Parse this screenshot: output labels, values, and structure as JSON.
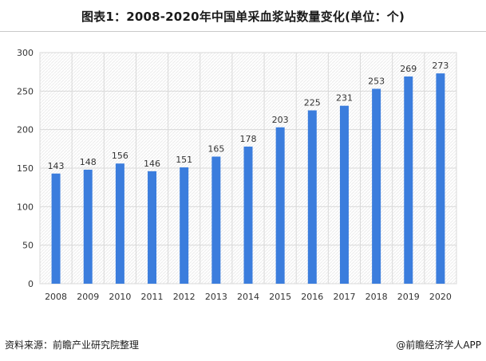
{
  "title": "图表1：2008-2020年中国单采血浆站数量变化(单位：个)",
  "footer": {
    "source": "资料来源：前瞻产业研究院整理",
    "brand": "@前瞻经济学人APP"
  },
  "watermark": "前瞻产业研究院",
  "chart_data": {
    "type": "bar",
    "title": "2008-2020年中国单采血浆站数量变化(单位：个)",
    "categories": [
      "2008",
      "2009",
      "2010",
      "2011",
      "2012",
      "2013",
      "2014",
      "2015",
      "2016",
      "2017",
      "2018",
      "2019",
      "2020"
    ],
    "series": [
      {
        "values": [
          143,
          148,
          156,
          146,
          151,
          165,
          178,
          203,
          225,
          231,
          253,
          269,
          273
        ]
      }
    ],
    "ylim": [
      0,
      300
    ],
    "yticks": [
      0,
      50,
      100,
      150,
      200,
      250,
      300
    ],
    "xlabel": "",
    "ylabel": "",
    "grid": true,
    "bar_color": "#3b7ddd",
    "grid_color": "#d9d9d9",
    "data_labels": true
  }
}
